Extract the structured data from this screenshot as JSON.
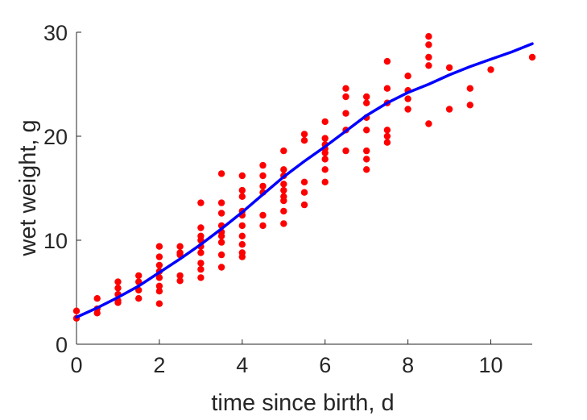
{
  "chart_data": {
    "type": "scatter",
    "title": "",
    "xlabel": "time since birth, d",
    "ylabel": "wet weight, g",
    "xlim": [
      0,
      11
    ],
    "ylim": [
      0,
      30
    ],
    "xticks": [
      0,
      2,
      4,
      6,
      8,
      10
    ],
    "yticks": [
      0,
      10,
      20,
      30
    ],
    "grid": false,
    "box": false,
    "series": [
      {
        "kind": "points",
        "color": "#ff0000",
        "points": [
          [
            0,
            3.2
          ],
          [
            0,
            2.5
          ],
          [
            0.5,
            4.4
          ],
          [
            0.5,
            3.4
          ],
          [
            0.5,
            3.0
          ],
          [
            1,
            6.0
          ],
          [
            1,
            5.4
          ],
          [
            1,
            4.8
          ],
          [
            1,
            4.2
          ],
          [
            1,
            4.0
          ],
          [
            1.5,
            6.6
          ],
          [
            1.5,
            6.0
          ],
          [
            1.5,
            5.2
          ],
          [
            1.5,
            4.4
          ],
          [
            2,
            9.4
          ],
          [
            2,
            8.4
          ],
          [
            2,
            7.6
          ],
          [
            2,
            7.0
          ],
          [
            2,
            6.4
          ],
          [
            2,
            5.6
          ],
          [
            2,
            5.1
          ],
          [
            2,
            3.9
          ],
          [
            2.5,
            9.4
          ],
          [
            2.5,
            8.8
          ],
          [
            2.5,
            8.6
          ],
          [
            2.5,
            6.6
          ],
          [
            2.5,
            6.1
          ],
          [
            3,
            13.6
          ],
          [
            3,
            11.2
          ],
          [
            3,
            10.4
          ],
          [
            3,
            10.0
          ],
          [
            3,
            9.4
          ],
          [
            3,
            8.8
          ],
          [
            3,
            7.8
          ],
          [
            3,
            7.2
          ],
          [
            3,
            6.4
          ],
          [
            3.5,
            16.4
          ],
          [
            3.5,
            13.6
          ],
          [
            3.5,
            12.6
          ],
          [
            3.5,
            11.4
          ],
          [
            3.5,
            10.8
          ],
          [
            3.5,
            10.4
          ],
          [
            3.5,
            9.8
          ],
          [
            3.5,
            8.6
          ],
          [
            3.5,
            7.4
          ],
          [
            4,
            16.2
          ],
          [
            4,
            14.8
          ],
          [
            4,
            14.2
          ],
          [
            4,
            12.8
          ],
          [
            4,
            12.4
          ],
          [
            4,
            11.4
          ],
          [
            4,
            10.4
          ],
          [
            4,
            9.6
          ],
          [
            4,
            8.8
          ],
          [
            4,
            8.4
          ],
          [
            4.5,
            17.2
          ],
          [
            4.5,
            16.2
          ],
          [
            4.5,
            15.2
          ],
          [
            4.5,
            14.6
          ],
          [
            4.5,
            12.4
          ],
          [
            4.5,
            11.4
          ],
          [
            5,
            18.6
          ],
          [
            5,
            16.8
          ],
          [
            5,
            16.2
          ],
          [
            5,
            15.4
          ],
          [
            5,
            14.8
          ],
          [
            5,
            14.2
          ],
          [
            5,
            13.8
          ],
          [
            5,
            12.8
          ],
          [
            5,
            11.6
          ],
          [
            5.5,
            20.2
          ],
          [
            5.5,
            19.6
          ],
          [
            5.5,
            15.6
          ],
          [
            5.5,
            14.6
          ],
          [
            5.5,
            13.4
          ],
          [
            6,
            21.4
          ],
          [
            6,
            19.8
          ],
          [
            6,
            19.2
          ],
          [
            6,
            18.8
          ],
          [
            6,
            18.4
          ],
          [
            6,
            17.8
          ],
          [
            6,
            16.8
          ],
          [
            6,
            15.6
          ],
          [
            6.5,
            24.6
          ],
          [
            6.5,
            23.8
          ],
          [
            6.5,
            22.2
          ],
          [
            6.5,
            20.6
          ],
          [
            6.5,
            18.6
          ],
          [
            7,
            23.8
          ],
          [
            7,
            23.2
          ],
          [
            7,
            21.8
          ],
          [
            7,
            20.6
          ],
          [
            7,
            18.6
          ],
          [
            7,
            17.8
          ],
          [
            7,
            16.8
          ],
          [
            7.5,
            27.2
          ],
          [
            7.5,
            24.6
          ],
          [
            7.5,
            23.2
          ],
          [
            7.5,
            20.6
          ],
          [
            7.5,
            20.0
          ],
          [
            7.5,
            19.4
          ],
          [
            8,
            25.8
          ],
          [
            8,
            24.4
          ],
          [
            8,
            23.6
          ],
          [
            8,
            22.6
          ],
          [
            8.5,
            29.6
          ],
          [
            8.5,
            28.8
          ],
          [
            8.5,
            27.6
          ],
          [
            8.5,
            26.8
          ],
          [
            8.5,
            21.2
          ],
          [
            9,
            26.6
          ],
          [
            9,
            22.6
          ],
          [
            9.5,
            24.6
          ],
          [
            9.5,
            23.0
          ],
          [
            10,
            26.4
          ],
          [
            11,
            27.6
          ]
        ]
      },
      {
        "kind": "line",
        "color": "#0000ff",
        "points": [
          [
            0,
            2.6
          ],
          [
            0.5,
            3.5
          ],
          [
            1,
            4.5
          ],
          [
            1.5,
            5.6
          ],
          [
            2,
            6.9
          ],
          [
            2.5,
            8.2
          ],
          [
            3,
            9.6
          ],
          [
            3.5,
            11.1
          ],
          [
            4,
            12.7
          ],
          [
            4.5,
            14.4
          ],
          [
            5,
            16.1
          ],
          [
            5.5,
            17.6
          ],
          [
            6,
            19.0
          ],
          [
            6.5,
            20.5
          ],
          [
            7,
            22.0
          ],
          [
            7.5,
            23.2
          ],
          [
            8,
            24.2
          ],
          [
            8.5,
            25.0
          ],
          [
            9,
            25.9
          ],
          [
            9.5,
            26.7
          ],
          [
            10,
            27.4
          ],
          [
            10.5,
            28.1
          ],
          [
            11,
            28.9
          ]
        ]
      }
    ]
  }
}
